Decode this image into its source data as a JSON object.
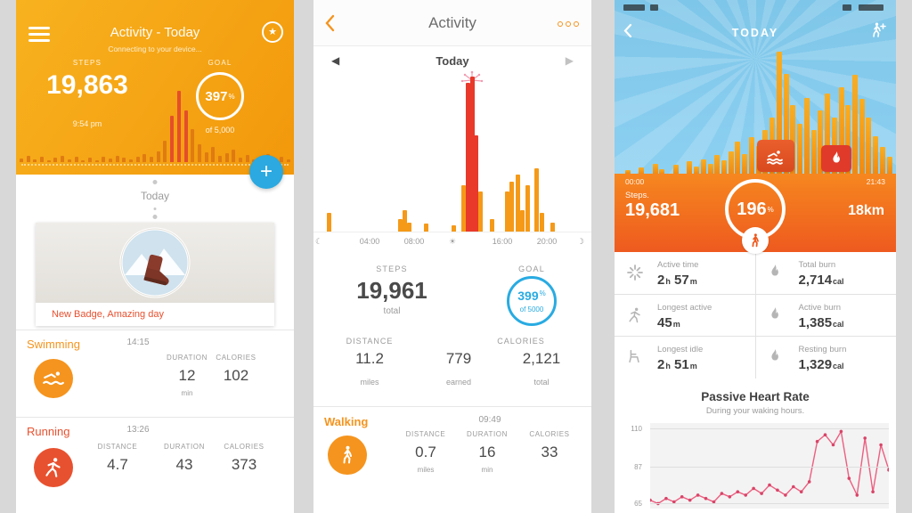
{
  "glyphs": {
    "plus": "+",
    "star": "★",
    "percent": "%",
    "tri_left": "◀",
    "tri_right": "▶",
    "sun": "☀",
    "moon": "☾",
    "moon2": "☽"
  },
  "colors": {
    "orange": "#F5941E",
    "red": "#E8512F",
    "blue": "#29ABE2",
    "deep_orange": "#EE5A1F",
    "sky": "#7EC6E9",
    "heart_line": "#EC5F80"
  },
  "panel1": {
    "title": "Activity - Today",
    "subtitle": "Connecting to your device...",
    "steps_label": "STEPS",
    "steps_value": "19,863",
    "steps_time": "9:54 pm",
    "goal_label": "GOAL",
    "goal_percent": "397",
    "goal_of": "of 5,000",
    "today_label": "Today",
    "badge_caption": "New Badge, Amazing day",
    "swimming": {
      "title": "Swimming",
      "time": "14:15",
      "duration_label": "DURATION",
      "duration_value": "12",
      "duration_unit": "min",
      "calories_label": "CALORIES",
      "calories_value": "102"
    },
    "running": {
      "title": "Running",
      "time": "13:26",
      "distance_label": "DISTANCE",
      "distance_value": "4.7",
      "duration_label": "DURATION",
      "duration_value": "43",
      "calories_label": "CALORIES",
      "calories_value": "373"
    }
  },
  "panel2": {
    "title": "Activity",
    "day_label": "Today",
    "axis_ticks": [
      "04:00",
      "08:00",
      "16:00",
      "20:00"
    ],
    "steps_label": "STEPS",
    "steps_value": "19,961",
    "steps_sub": "total",
    "goal_label": "GOAL",
    "goal_percent": "399",
    "goal_of": "of 5000",
    "distance_label": "DISTANCE",
    "distance_value": "11.2",
    "distance_unit": "miles",
    "calories_label": "CALORIES",
    "calories_earned": "779",
    "calories_earned_label": "earned",
    "calories_total": "2,121",
    "calories_total_label": "total",
    "walking": {
      "title": "Walking",
      "time": "09:49",
      "cols": [
        {
          "label": "DISTANCE",
          "value": "0.7",
          "unit": "miles"
        },
        {
          "label": "DURATION",
          "value": "16",
          "unit": "min"
        },
        {
          "label": "CALORIES",
          "value": "33",
          "unit": ""
        }
      ]
    }
  },
  "panel3": {
    "title": "TODAY",
    "start_time": "00:00",
    "end_time": "21:43",
    "steps_label": "Steps.",
    "steps_value": "19,681",
    "goal_percent": "196",
    "distance": "18km",
    "stats": [
      {
        "label": "Active time",
        "v1": "2",
        "u1": "h",
        "v2": " 57",
        "u2": "m"
      },
      {
        "label": "Total burn",
        "v1": "2,714",
        "u1": "cal"
      },
      {
        "label": "Longest active",
        "v1": "45",
        "u1": "m"
      },
      {
        "label": "Active burn",
        "v1": "1,385",
        "u1": "cal"
      },
      {
        "label": "Longest idle",
        "v1": "2",
        "u1": "h",
        "v2": " 51",
        "u2": "m"
      },
      {
        "label": "Resting burn",
        "v1": "1,329",
        "u1": "cal"
      }
    ],
    "heart_title": "Passive Heart Rate",
    "heart_subtitle": "During your waking hours."
  },
  "charts": {
    "header_sparkline": {
      "type": "bar",
      "note": "unlabeled step-intensity sparkline in orange header",
      "values": [
        5,
        9,
        4,
        7,
        3,
        6,
        9,
        4,
        7,
        3,
        6,
        3,
        7,
        5,
        9,
        6,
        4,
        8,
        11,
        7,
        15,
        30,
        65,
        100,
        72,
        46,
        25,
        14,
        21,
        9,
        13,
        18,
        6,
        10,
        4,
        8,
        11,
        5,
        8,
        4
      ]
    },
    "hourly_steps": {
      "type": "bar",
      "x_axis_ticks": [
        "04:00",
        "08:00",
        "16:00",
        "20:00"
      ],
      "x_range_hours": [
        0,
        24
      ],
      "bars": [
        {
          "h": 0.3,
          "v": 12,
          "c": "o"
        },
        {
          "h": 6.8,
          "v": 8,
          "c": "o"
        },
        {
          "h": 7.2,
          "v": 14,
          "c": "o"
        },
        {
          "h": 7.6,
          "v": 6,
          "c": "o"
        },
        {
          "h": 9.1,
          "v": 5,
          "c": "o"
        },
        {
          "h": 11.6,
          "v": 4,
          "c": "o"
        },
        {
          "h": 12.5,
          "v": 30,
          "c": "o"
        },
        {
          "h": 12.9,
          "v": 96,
          "c": "r"
        },
        {
          "h": 13.3,
          "v": 100,
          "c": "r"
        },
        {
          "h": 13.7,
          "v": 62,
          "c": "r"
        },
        {
          "h": 14.1,
          "v": 26,
          "c": "o"
        },
        {
          "h": 15.1,
          "v": 8,
          "c": "o"
        },
        {
          "h": 16.5,
          "v": 26,
          "c": "o"
        },
        {
          "h": 16.9,
          "v": 32,
          "c": "o"
        },
        {
          "h": 17.5,
          "v": 37,
          "c": "o"
        },
        {
          "h": 17.9,
          "v": 14,
          "c": "o"
        },
        {
          "h": 18.4,
          "v": 30,
          "c": "o"
        },
        {
          "h": 19.2,
          "v": 41,
          "c": "o"
        },
        {
          "h": 19.7,
          "v": 12,
          "c": "o"
        },
        {
          "h": 20.6,
          "v": 6,
          "c": "o"
        }
      ]
    },
    "skyline_steps": {
      "type": "bar",
      "note": "city-skyline style step bars over sky background",
      "values": [
        0,
        3,
        0,
        5,
        0,
        8,
        4,
        0,
        7,
        0,
        10,
        6,
        12,
        8,
        15,
        11,
        18,
        26,
        16,
        30,
        23,
        36,
        46,
        100,
        82,
        56,
        41,
        62,
        36,
        52,
        66,
        46,
        71,
        56,
        81,
        61,
        46,
        31,
        22,
        14
      ]
    },
    "heart_rate": {
      "type": "line",
      "ymin": 62,
      "ymax": 113,
      "yticks": [
        110,
        87,
        65
      ],
      "values": [
        67,
        65,
        68,
        66,
        69,
        67,
        70,
        68,
        66,
        71,
        69,
        72,
        70,
        74,
        71,
        76,
        73,
        70,
        75,
        72,
        78,
        102,
        106,
        100,
        108,
        80,
        70,
        104,
        72,
        100,
        85
      ],
      "line_color": "#EC5F80",
      "dot_color": "#D94468"
    }
  }
}
